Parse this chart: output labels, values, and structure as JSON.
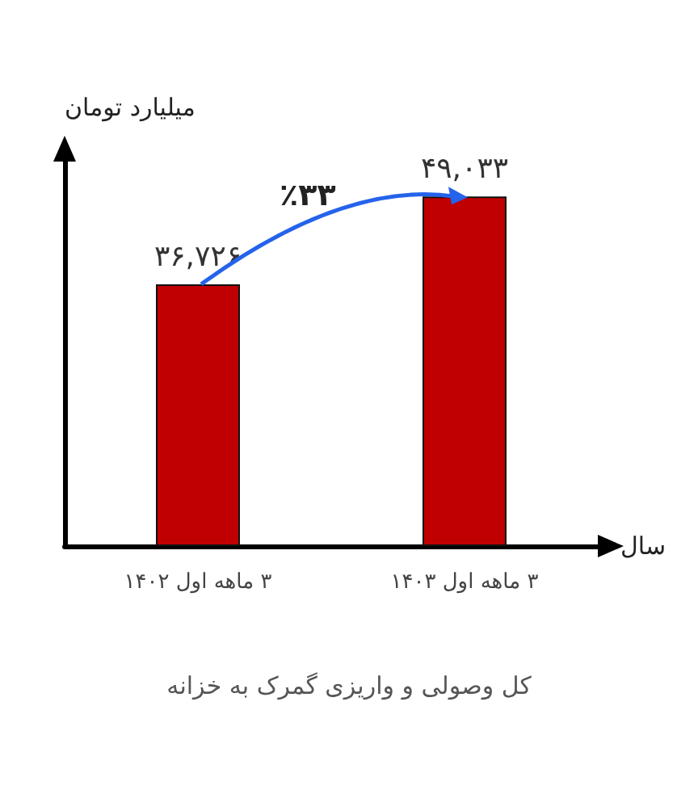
{
  "chart_data": {
    "type": "bar",
    "title": "کل وصولی و واریزی گمرک به خزانه",
    "xlabel": "سال",
    "ylabel": "میلیارد تومان",
    "categories": [
      "۳ ماهه اول ۱۴۰۲",
      "۳ ماهه اول ۱۴۰۳"
    ],
    "values": [
      36726,
      49033
    ],
    "value_labels": [
      "۳۶,۷۲۶",
      "۴۹,۰۳۳"
    ],
    "color": "#c00000",
    "annotations": [
      "٪۳۳"
    ],
    "tick_labels": "x"
  }
}
